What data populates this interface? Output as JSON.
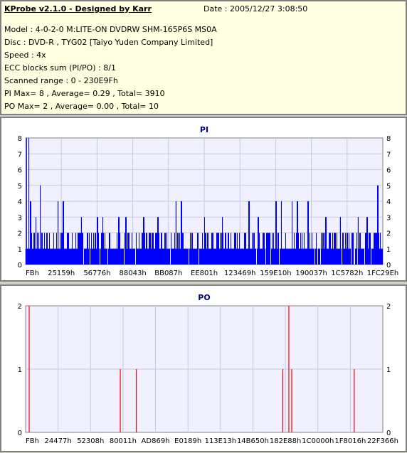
{
  "info": {
    "title": "KProbe v2.1.0 - Designed by Karr",
    "date": "Date : 2005/12/27 3:08:50",
    "lines": [
      "Model : 4-0-2-0 M:LITE-ON DVDRW SHM-165P6S MS0A",
      "Disc : DVD-R , TYG02 [Taiyo Yuden Company Limited]",
      "Speed : 4x",
      "ECC blocks sum (PI/PO) : 8/1",
      "Scanned range : 0 - 230E9Fh",
      "PI Max= 8 , Average= 0.29 , Total= 3910",
      "PO Max= 2 , Average= 0.00 , Total= 10"
    ]
  },
  "colors": {
    "pi_series": "#0000ff",
    "po_series": "#ff0000",
    "title": "#000080",
    "plot_bg": "#f0f0ff",
    "grid": "#c8c8e0"
  },
  "chart_data": [
    {
      "type": "bar",
      "title": "PI",
      "ylim": [
        0,
        8
      ],
      "yticks": [
        0,
        1,
        2,
        3,
        4,
        5,
        6,
        7,
        8
      ],
      "xticks": [
        "FBh",
        "25159h",
        "56776h",
        "88043h",
        "BB087h",
        "EE801h",
        "123469h",
        "159E10h",
        "190037h",
        "1C5782h",
        "1FC29Eh"
      ],
      "grid": true,
      "series": [
        {
          "baseline": "dense bars of height 1 across the full scan range with frequent spikes of 2",
          "peaks": [
            {
              "x": 0.002,
              "y": 8
            },
            {
              "x": 0.008,
              "y": 8
            },
            {
              "x": 0.013,
              "y": 4
            },
            {
              "x": 0.028,
              "y": 3
            },
            {
              "x": 0.04,
              "y": 5
            },
            {
              "x": 0.09,
              "y": 4
            },
            {
              "x": 0.105,
              "y": 4
            },
            {
              "x": 0.155,
              "y": 3
            },
            {
              "x": 0.2,
              "y": 3
            },
            {
              "x": 0.215,
              "y": 3
            },
            {
              "x": 0.26,
              "y": 3
            },
            {
              "x": 0.28,
              "y": 3
            },
            {
              "x": 0.33,
              "y": 3
            },
            {
              "x": 0.37,
              "y": 3
            },
            {
              "x": 0.42,
              "y": 4
            },
            {
              "x": 0.435,
              "y": 4
            },
            {
              "x": 0.5,
              "y": 3
            },
            {
              "x": 0.55,
              "y": 3
            },
            {
              "x": 0.625,
              "y": 4
            },
            {
              "x": 0.65,
              "y": 3
            },
            {
              "x": 0.7,
              "y": 4
            },
            {
              "x": 0.715,
              "y": 4
            },
            {
              "x": 0.745,
              "y": 4
            },
            {
              "x": 0.76,
              "y": 4
            },
            {
              "x": 0.79,
              "y": 4
            },
            {
              "x": 0.84,
              "y": 3
            },
            {
              "x": 0.88,
              "y": 3
            },
            {
              "x": 0.93,
              "y": 3
            },
            {
              "x": 0.955,
              "y": 3
            },
            {
              "x": 0.985,
              "y": 5
            }
          ]
        }
      ]
    },
    {
      "type": "bar",
      "title": "PO",
      "ylim": [
        0,
        2
      ],
      "yticks": [
        0,
        1,
        2
      ],
      "xticks": [
        "FBh",
        "24477h",
        "52308h",
        "80011h",
        "AD869h",
        "E0189h",
        "113E13h",
        "14B650h",
        "182E88h",
        "1C0000h",
        "1F8016h",
        "22F366h"
      ],
      "grid": true,
      "series": [
        {
          "points": [
            {
              "x": 0.01,
              "y": 2
            },
            {
              "x": 0.265,
              "y": 1
            },
            {
              "x": 0.31,
              "y": 1
            },
            {
              "x": 0.72,
              "y": 1
            },
            {
              "x": 0.737,
              "y": 2
            },
            {
              "x": 0.745,
              "y": 1
            },
            {
              "x": 0.92,
              "y": 1
            }
          ]
        }
      ]
    }
  ]
}
